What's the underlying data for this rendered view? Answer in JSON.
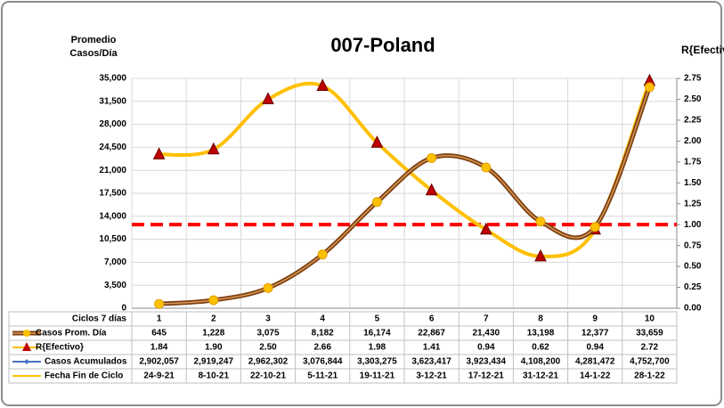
{
  "chart_data": {
    "type": "line",
    "title": "007-Poland",
    "y_label": [
      "Promedio",
      "Casos/Día"
    ],
    "y2_label": "R{Efectivo}",
    "x_label": "Ciclos 7 días",
    "categories": [
      "1",
      "2",
      "3",
      "4",
      "5",
      "6",
      "7",
      "8",
      "9",
      "10"
    ],
    "ylim": [
      0,
      35000
    ],
    "yticks": [
      0,
      {
        "value": 3500,
        "label": "3,500"
      },
      {
        "value": 7000,
        "label": "7,000"
      },
      {
        "value": 10500,
        "label": "10,500"
      },
      {
        "value": 14000,
        "label": "14,000"
      },
      {
        "value": 17500,
        "label": "17,500"
      },
      {
        "value": 21000,
        "label": "21,000"
      },
      {
        "value": 24500,
        "label": "24,500"
      },
      {
        "value": 28000,
        "label": "28,000"
      },
      {
        "value": 31500,
        "label": "31,500"
      },
      {
        "value": 35000,
        "label": "35,000"
      }
    ],
    "y2lim": [
      0,
      2.75
    ],
    "y2ticks": [
      {
        "value": 0,
        "label": "0.00"
      },
      0.25,
      {
        "value": 0.5,
        "label": "0.50"
      },
      0.75,
      {
        "value": 1,
        "label": "1.00"
      },
      1.25,
      {
        "value": 1.5,
        "label": "1.50"
      },
      1.75,
      {
        "value": 2,
        "label": "2.00"
      },
      2.25,
      {
        "value": 2.5,
        "label": "2.50"
      },
      2.75
    ],
    "grid": true,
    "reference_line": {
      "value": 1,
      "axis": "y2",
      "color": "#ff0000"
    },
    "series": [
      {
        "name": "Casos Prom. Día",
        "color": "#7f3f10",
        "marker": "circle",
        "marker_color": "#ffc000",
        "axis": "y",
        "values": [
          645,
          1228,
          3075,
          8182,
          16174,
          22867,
          21430,
          13198,
          12377,
          33659
        ],
        "value_labels": [
          "645",
          "1,228",
          "3,075",
          "8,182",
          "16,174",
          "22,867",
          "21,430",
          "13,198",
          "12,377",
          "33,659"
        ]
      },
      {
        "name": "R{Efectivo}",
        "color": "#ffc000",
        "marker": "triangle",
        "marker_color": "#c00000",
        "axis": "y2",
        "values": [
          1.84,
          1.9,
          2.5,
          2.66,
          1.98,
          1.41,
          0.94,
          0.62,
          0.94,
          2.72
        ],
        "value_labels": [
          "1.84",
          "1.90",
          "2.50",
          "2.66",
          "1.98",
          "1.41",
          "0.94",
          "0.62",
          "0.94",
          "2.72"
        ]
      },
      {
        "name": "Casos Acumulados",
        "color": "#4472c4",
        "marker": "diamond",
        "marker_color": "#4472c4",
        "axis": "y",
        "values": [
          2902057,
          2919247,
          2962302,
          3076844,
          3303275,
          3623417,
          3923434,
          4108200,
          4281472,
          4752700
        ],
        "value_labels": [
          "2,902,057",
          "2,919,247",
          "2,962,302",
          "3,076,844",
          "3,303,275",
          "3,623,417",
          "3,923,434",
          "4,108,200",
          "4,281,472",
          "4,752,700"
        ]
      }
    ],
    "dates": {
      "name": "Fecha Fin de Ciclo",
      "color": "#ffc000",
      "labels": [
        "24-9-21",
        "8-10-21",
        "22-10-21",
        "5-11-21",
        "19-11-21",
        "3-12-21",
        "17-12-21",
        "31-12-21",
        "14-1-22",
        "28-1-22"
      ]
    }
  }
}
